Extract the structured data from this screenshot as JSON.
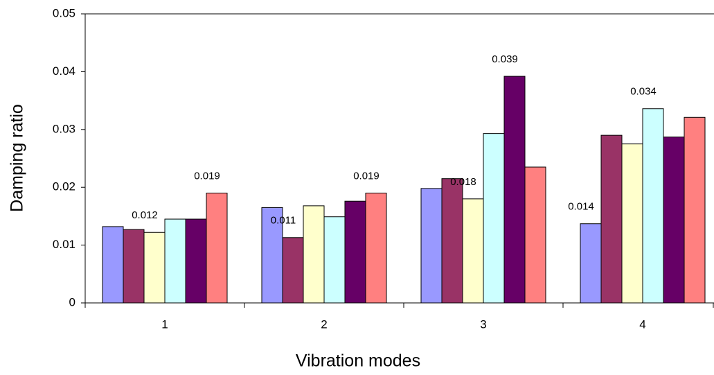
{
  "chart_data": {
    "type": "bar",
    "xlabel": "Vibration modes",
    "ylabel": "Damping ratio",
    "categories": [
      "1",
      "2",
      "3",
      "4"
    ],
    "series": [
      {
        "color": "#9999ff",
        "values": [
          0.0132,
          0.0165,
          0.0198,
          0.0137
        ],
        "value_labels": [
          null,
          null,
          null,
          "0.014"
        ]
      },
      {
        "color": "#993366",
        "values": [
          0.0127,
          0.0113,
          0.0215,
          0.029
        ],
        "value_labels": [
          null,
          "0.011",
          null,
          null
        ]
      },
      {
        "color": "#ffffcc",
        "values": [
          0.0122,
          0.0168,
          0.018,
          0.0275
        ],
        "value_labels": [
          "0.012",
          null,
          "0.018",
          null
        ]
      },
      {
        "color": "#ccffff",
        "values": [
          0.0145,
          0.0149,
          0.0293,
          0.0336
        ],
        "value_labels": [
          null,
          null,
          null,
          "0.034"
        ]
      },
      {
        "color": "#660066",
        "values": [
          0.0145,
          0.0176,
          0.0392,
          0.0287
        ],
        "value_labels": [
          null,
          null,
          "0.039",
          null
        ]
      },
      {
        "color": "#ff8080",
        "values": [
          0.019,
          0.019,
          0.0235,
          0.0321
        ],
        "value_labels": [
          "0.019",
          "0.019",
          null,
          null
        ]
      }
    ],
    "ylim": [
      0,
      0.05
    ],
    "yticks": [
      0,
      0.01,
      0.02,
      0.03,
      0.04,
      0.05
    ],
    "grid": false
  }
}
